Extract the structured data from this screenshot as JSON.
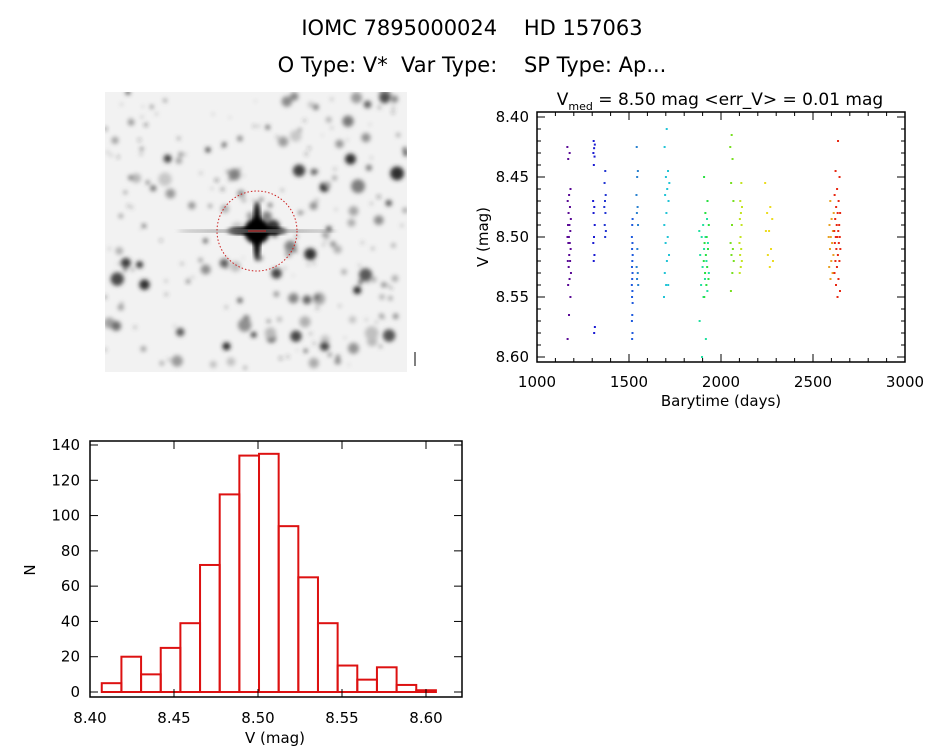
{
  "header": {
    "title_line1": "IOMC 7895000024    HD 157063",
    "title_line2": "O Type: V*  Var Type:    SP Type: Ap..."
  },
  "image_panel": {
    "marker_color": "#cc2020"
  },
  "chart_data": [
    {
      "type": "scatter",
      "title_prefix": "V",
      "title_subscript": "med",
      "title_rest": " = 8.50 mag <err_V> = 0.01 mag",
      "xlabel": "Barytime (days)",
      "ylabel": "V (mag)",
      "xlim": [
        1000,
        3000
      ],
      "ylim": [
        8.6,
        8.4
      ],
      "y_inverted": true,
      "xticks": [
        "1000",
        "1500",
        "2000",
        "2500",
        "3000"
      ],
      "yticks": [
        "8.40",
        "8.45",
        "8.50",
        "8.55",
        "8.60"
      ],
      "grid": false,
      "color_scale": "rainbow by time",
      "groups": [
        {
          "t": [
            1165,
            1185
          ],
          "color": "#5a0a96",
          "V": [
            8.425,
            8.43,
            8.435,
            8.46,
            8.465,
            8.47,
            8.475,
            8.48,
            8.485,
            8.49,
            8.49,
            8.495,
            8.5,
            8.5,
            8.505,
            8.505,
            8.51,
            8.515,
            8.52,
            8.52,
            8.525,
            8.53,
            8.535,
            8.54,
            8.55,
            8.565,
            8.585
          ]
        },
        {
          "t": [
            1305,
            1315
          ],
          "color": "#1a1ad2",
          "V": [
            8.42,
            8.423,
            8.426,
            8.43,
            8.433,
            8.44,
            8.47,
            8.475,
            8.48,
            8.49,
            8.5,
            8.505,
            8.515,
            8.52,
            8.575,
            8.58
          ]
        },
        {
          "t": [
            1365,
            1375
          ],
          "color": "#2236d2",
          "V": [
            8.445,
            8.455,
            8.465,
            8.47,
            8.475,
            8.48,
            8.49,
            8.495,
            8.5
          ]
        },
        {
          "t": [
            1515,
            1520
          ],
          "color": "#1e5ade",
          "V": [
            8.485,
            8.49,
            8.5,
            8.505,
            8.51,
            8.515,
            8.52,
            8.525,
            8.53,
            8.535,
            8.54,
            8.545,
            8.55,
            8.555,
            8.565,
            8.57,
            8.58,
            8.585
          ]
        },
        {
          "t": [
            1540,
            1550
          ],
          "color": "#2a82d0",
          "V": [
            8.425,
            8.445,
            8.45,
            8.465,
            8.475,
            8.48,
            8.49,
            8.51,
            8.525,
            8.53,
            8.535,
            8.54
          ]
        },
        {
          "t": [
            1690,
            1720
          ],
          "color": "#22c4d6",
          "V": [
            8.41,
            8.425,
            8.445,
            8.45,
            8.455,
            8.46,
            8.465,
            8.47,
            8.48,
            8.49,
            8.5,
            8.505,
            8.515,
            8.52,
            8.53,
            8.54,
            8.54,
            8.55
          ]
        },
        {
          "t": [
            1880,
            1935
          ],
          "color": "#22e0a0",
          "V": [
            8.485,
            8.49,
            8.495,
            8.5,
            8.5,
            8.505,
            8.51,
            8.515,
            8.52,
            8.525,
            8.53,
            8.535,
            8.54,
            8.545,
            8.55,
            8.57,
            8.585,
            8.6
          ]
        },
        {
          "t": [
            1905,
            1935
          ],
          "color": "#2ae040",
          "V": [
            8.45,
            8.47,
            8.48,
            8.49,
            8.5,
            8.505,
            8.51,
            8.515,
            8.52,
            8.525,
            8.53,
            8.535,
            8.54,
            8.55
          ]
        },
        {
          "t": [
            2050,
            2070
          ],
          "color": "#78e020",
          "V": [
            8.415,
            8.425,
            8.435,
            8.455,
            8.47,
            8.49,
            8.505,
            8.51,
            8.515,
            8.52,
            8.53,
            8.545
          ]
        },
        {
          "t": [
            2100,
            2115
          ],
          "color": "#c4e422",
          "V": [
            8.455,
            8.47,
            8.475,
            8.48,
            8.485,
            8.49,
            8.5,
            8.505,
            8.51,
            8.515,
            8.52,
            8.525,
            8.53
          ]
        },
        {
          "t": [
            2240,
            2285
          ],
          "color": "#ecdc20",
          "V": [
            8.455,
            8.475,
            8.48,
            8.485,
            8.495,
            8.495,
            8.51,
            8.515,
            8.52,
            8.525
          ]
        },
        {
          "t": [
            2585,
            2615
          ],
          "color": "#eaa224",
          "V": [
            8.47,
            8.48,
            8.485,
            8.49,
            8.495,
            8.5,
            8.5,
            8.505,
            8.51,
            8.515,
            8.52,
            8.525,
            8.53,
            8.535
          ]
        },
        {
          "t": [
            2615,
            2650
          ],
          "color": "#e82812",
          "V": [
            8.42,
            8.445,
            8.45,
            8.46,
            8.465,
            8.47,
            8.475,
            8.48,
            8.48,
            8.485,
            8.49,
            8.49,
            8.495,
            8.495,
            8.5,
            8.5,
            8.5,
            8.505,
            8.505,
            8.51,
            8.51,
            8.515,
            8.52,
            8.52,
            8.525,
            8.53,
            8.535,
            8.54,
            8.545,
            8.55
          ]
        }
      ]
    },
    {
      "type": "bar",
      "subtype": "histogram",
      "xlabel": "V (mag)",
      "ylabel": "N",
      "xlim": [
        8.4,
        8.62
      ],
      "ylim": [
        0,
        140
      ],
      "xticks": [
        "8.40",
        "8.45",
        "8.50",
        "8.55",
        "8.60"
      ],
      "yticks": [
        "0",
        "20",
        "40",
        "60",
        "80",
        "100",
        "120",
        "140"
      ],
      "bin_start": 8.407,
      "bin_width": 0.0117,
      "values": [
        5,
        20,
        10,
        25,
        39,
        72,
        112,
        134,
        135,
        94,
        65,
        39,
        15,
        7,
        14,
        4,
        1
      ],
      "bar_color": "#dd1111",
      "grid": false
    }
  ]
}
